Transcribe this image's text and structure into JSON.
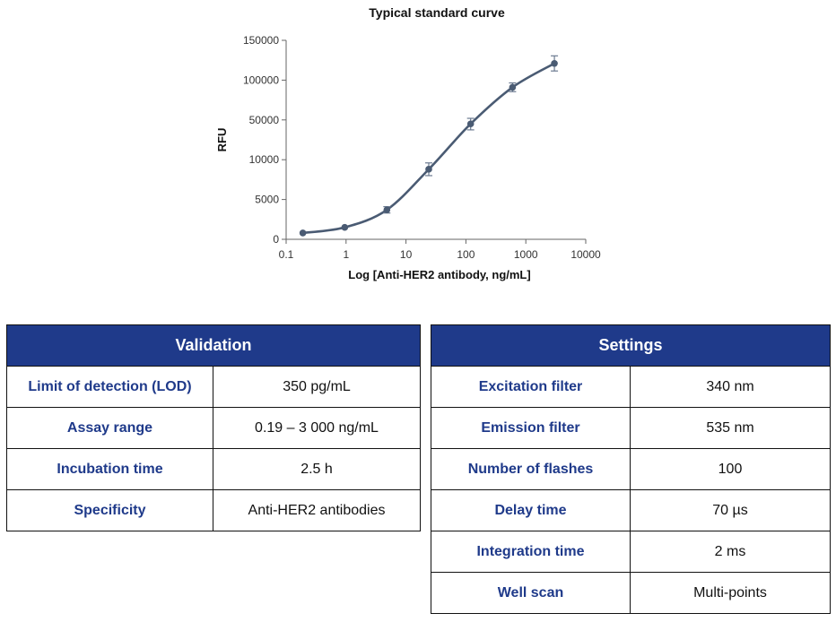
{
  "chart_data": {
    "type": "line",
    "title": "Typical standard curve",
    "xlabel": "Log [Anti-HER2 antibody, ng/mL]",
    "ylabel": "RFU",
    "x_scale": "log",
    "xlim": [
      0.1,
      10000
    ],
    "x_ticks": [
      "0.1",
      "1",
      "10",
      "100",
      "1000",
      "10000"
    ],
    "y_ticks": [
      "0",
      "5000",
      "10000",
      "50000",
      "100000",
      "150000"
    ],
    "series": [
      {
        "x": [
          0.19,
          0.95,
          4.8,
          24,
          120,
          600,
          3000
        ],
        "y": [
          800,
          1500,
          3700,
          8800,
          46000,
          91000,
          121000
        ],
        "error": [
          0,
          0,
          400,
          800,
          6000,
          5500,
          9500
        ]
      }
    ],
    "color": "#4a5b73"
  },
  "validation": {
    "title": "Validation",
    "rows": [
      {
        "label": "Limit of detection (LOD)",
        "value": "350 pg/mL"
      },
      {
        "label": "Assay range",
        "value": "0.19 – 3 000 ng/mL"
      },
      {
        "label": "Incubation time",
        "value": "2.5 h"
      },
      {
        "label": "Specificity",
        "value": "Anti-HER2 antibodies"
      }
    ]
  },
  "settings": {
    "title": "Settings",
    "rows": [
      {
        "label": "Excitation filter",
        "value": "340 nm"
      },
      {
        "label": "Emission filter",
        "value": "535 nm"
      },
      {
        "label": "Number of flashes",
        "value": "100"
      },
      {
        "label": "Delay time",
        "value": "70 µs"
      },
      {
        "label": "Integration time",
        "value": "2 ms"
      },
      {
        "label": "Well scan",
        "value": "Multi-points"
      }
    ]
  },
  "colors": {
    "header_bg": "#1f3a8a",
    "label_text": "#1f3a8a",
    "curve": "#4a5b73"
  }
}
